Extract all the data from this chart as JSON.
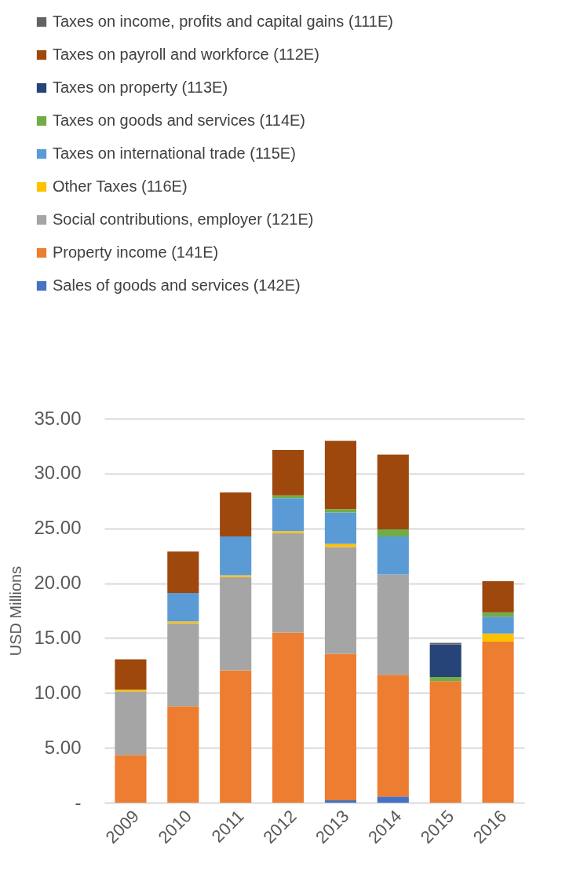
{
  "chart_data": {
    "type": "bar",
    "stacked": true,
    "ylabel": "USD Millions",
    "legend": "top",
    "grid": "y",
    "categories": [
      "2009",
      "2010",
      "2011",
      "2012",
      "2013",
      "2014",
      "2015",
      "2016"
    ],
    "ylim": [
      0,
      35
    ],
    "yticks": [
      {
        "value": 0,
        "label": "-"
      },
      {
        "value": 5,
        "label": "5.00"
      },
      {
        "value": 10,
        "label": "10.00"
      },
      {
        "value": 15,
        "label": "15.00"
      },
      {
        "value": 20,
        "label": "20.00"
      },
      {
        "value": 25,
        "label": "25.00"
      },
      {
        "value": 30,
        "label": "30.00"
      },
      {
        "value": 35,
        "label": "35.00"
      }
    ],
    "series": [
      {
        "name": "Sales of goods and services (142E)",
        "color": "#4472c4",
        "values": [
          null,
          null,
          null,
          null,
          0.22,
          0.55,
          null,
          null
        ]
      },
      {
        "name": "Property income  (141E)",
        "color": "#ed7d31",
        "values": [
          4.35,
          8.78,
          12.06,
          15.5,
          13.34,
          11.1,
          11.08,
          14.67
        ]
      },
      {
        "name": " Social contributions, employer  (121E)",
        "color": "#a5a5a5",
        "values": [
          5.79,
          7.58,
          8.51,
          9.07,
          9.74,
          9.14,
          null,
          null
        ]
      },
      {
        "name": "Other Taxes (116E)",
        "color": "#ffc000",
        "values": [
          0.17,
          0.15,
          0.15,
          0.17,
          0.29,
          null,
          null,
          0.74
        ]
      },
      {
        "name": "Taxes on international trade (115E)",
        "color": "#5b9bd5",
        "values": [
          null,
          2.6,
          3.54,
          3.01,
          2.85,
          3.47,
          null,
          1.53
        ]
      },
      {
        "name": "Taxes on goods and services (114E)",
        "color": "#70ad47",
        "values": [
          null,
          null,
          null,
          0.26,
          0.31,
          0.64,
          0.38,
          0.4
        ]
      },
      {
        "name": "Taxes on property (113E)",
        "color": "#264478",
        "values": [
          null,
          null,
          null,
          null,
          null,
          null,
          2.97,
          null
        ]
      },
      {
        "name": "Taxes on payroll and workforce (112E)",
        "color": "#9e480e",
        "values": [
          2.75,
          3.78,
          4.02,
          4.12,
          6.22,
          6.82,
          null,
          2.85
        ]
      },
      {
        "name": "Taxes on income, profits and capital gains (111E)",
        "color": "#636363",
        "values": [
          null,
          null,
          null,
          null,
          null,
          null,
          0.14,
          null
        ]
      }
    ]
  }
}
